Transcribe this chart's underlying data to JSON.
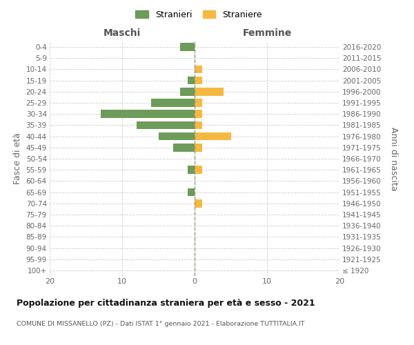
{
  "age_groups": [
    "100+",
    "95-99",
    "90-94",
    "85-89",
    "80-84",
    "75-79",
    "70-74",
    "65-69",
    "60-64",
    "55-59",
    "50-54",
    "45-49",
    "40-44",
    "35-39",
    "30-34",
    "25-29",
    "20-24",
    "15-19",
    "10-14",
    "5-9",
    "0-4"
  ],
  "birth_years": [
    "≤ 1920",
    "1921-1925",
    "1926-1930",
    "1931-1935",
    "1936-1940",
    "1941-1945",
    "1946-1950",
    "1951-1955",
    "1956-1960",
    "1961-1965",
    "1966-1970",
    "1971-1975",
    "1976-1980",
    "1981-1985",
    "1986-1990",
    "1991-1995",
    "1996-2000",
    "2001-2005",
    "2006-2010",
    "2011-2015",
    "2016-2020"
  ],
  "males": [
    0,
    0,
    0,
    0,
    0,
    0,
    0,
    1,
    0,
    1,
    0,
    3,
    5,
    8,
    13,
    6,
    2,
    1,
    0,
    0,
    2
  ],
  "females": [
    0,
    0,
    0,
    0,
    0,
    0,
    1,
    0,
    0,
    1,
    0,
    1,
    5,
    1,
    1,
    1,
    4,
    1,
    1,
    0,
    0
  ],
  "male_color": "#6d9b5a",
  "female_color": "#f5b942",
  "male_label": "Stranieri",
  "female_label": "Straniere",
  "title": "Popolazione per cittadinanza straniera per età e sesso - 2021",
  "subtitle": "COMUNE DI MISSANELLO (PZ) - Dati ISTAT 1° gennaio 2021 - Elaborazione TUTTITALIA.IT",
  "xlabel_left": "Maschi",
  "xlabel_right": "Femmine",
  "ylabel_left": "Fasce di età",
  "ylabel_right": "Anni di nascita",
  "xlim": 20,
  "background_color": "#ffffff",
  "grid_color": "#cccccc",
  "center_line_color": "#999977"
}
